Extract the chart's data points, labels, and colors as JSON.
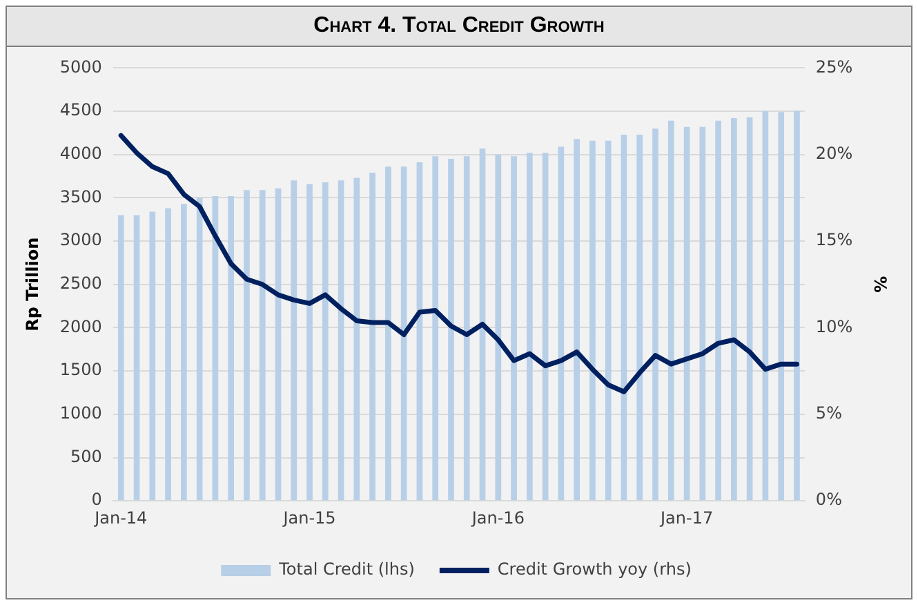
{
  "chart_data": {
    "type": "bar",
    "title": "Chart 4. Total Credit Growth",
    "ylabel": "Rp Trillion",
    "y2label": "%",
    "categories": [
      "Jan-14",
      null,
      null,
      null,
      null,
      null,
      null,
      null,
      null,
      null,
      null,
      null,
      "Jan-15",
      null,
      null,
      null,
      null,
      null,
      null,
      null,
      null,
      null,
      null,
      null,
      "Jan-16",
      null,
      null,
      null,
      null,
      null,
      null,
      null,
      null,
      null,
      null,
      null,
      "Jan-17",
      null,
      null,
      null,
      null,
      null,
      null,
      null
    ],
    "series": [
      {
        "name": "Total Credit (lhs)",
        "color": "#b8cfe8",
        "values": [
          3300,
          3300,
          3340,
          3380,
          3430,
          3500,
          3520,
          3520,
          3590,
          3590,
          3610,
          3700,
          3660,
          3680,
          3700,
          3730,
          3790,
          3860,
          3860,
          3910,
          3980,
          3950,
          3980,
          4070,
          4000,
          3980,
          4020,
          4020,
          4090,
          4180,
          4160,
          4160,
          4230,
          4230,
          4300,
          4390,
          4320,
          4320,
          4390,
          4420,
          4430,
          4500,
          4490,
          4500
        ]
      },
      {
        "name": "Credit Growth yoy (rhs)",
        "type": "line",
        "axis": "y2",
        "color": "#002060",
        "values": [
          21.1,
          20.1,
          19.3,
          18.9,
          17.7,
          17.0,
          15.3,
          13.7,
          12.8,
          12.5,
          11.9,
          11.6,
          11.4,
          11.9,
          11.1,
          10.4,
          10.3,
          10.3,
          9.6,
          10.9,
          11.0,
          10.1,
          9.6,
          10.2,
          9.3,
          8.1,
          8.5,
          7.8,
          8.1,
          8.6,
          7.6,
          6.7,
          6.3,
          7.4,
          8.4,
          7.9,
          8.2,
          8.5,
          9.1,
          9.3,
          8.6,
          7.6,
          7.9,
          7.9
        ]
      }
    ],
    "ylim": [
      0,
      5000
    ],
    "yticks": [
      0,
      500,
      1000,
      1500,
      2000,
      2500,
      3000,
      3500,
      4000,
      4500,
      5000
    ],
    "y2lim": [
      0,
      25
    ],
    "y2ticks": [
      {
        "value": 0,
        "label": "0%"
      },
      {
        "value": 5,
        "label": "5%"
      },
      {
        "value": 10,
        "label": "10%"
      },
      {
        "value": 15,
        "label": "15%"
      },
      {
        "value": 20,
        "label": "20%"
      },
      {
        "value": 25,
        "label": "25%"
      }
    ],
    "grid": "y",
    "legend": "bottom",
    "marker": "none",
    "line_style": "solid"
  }
}
